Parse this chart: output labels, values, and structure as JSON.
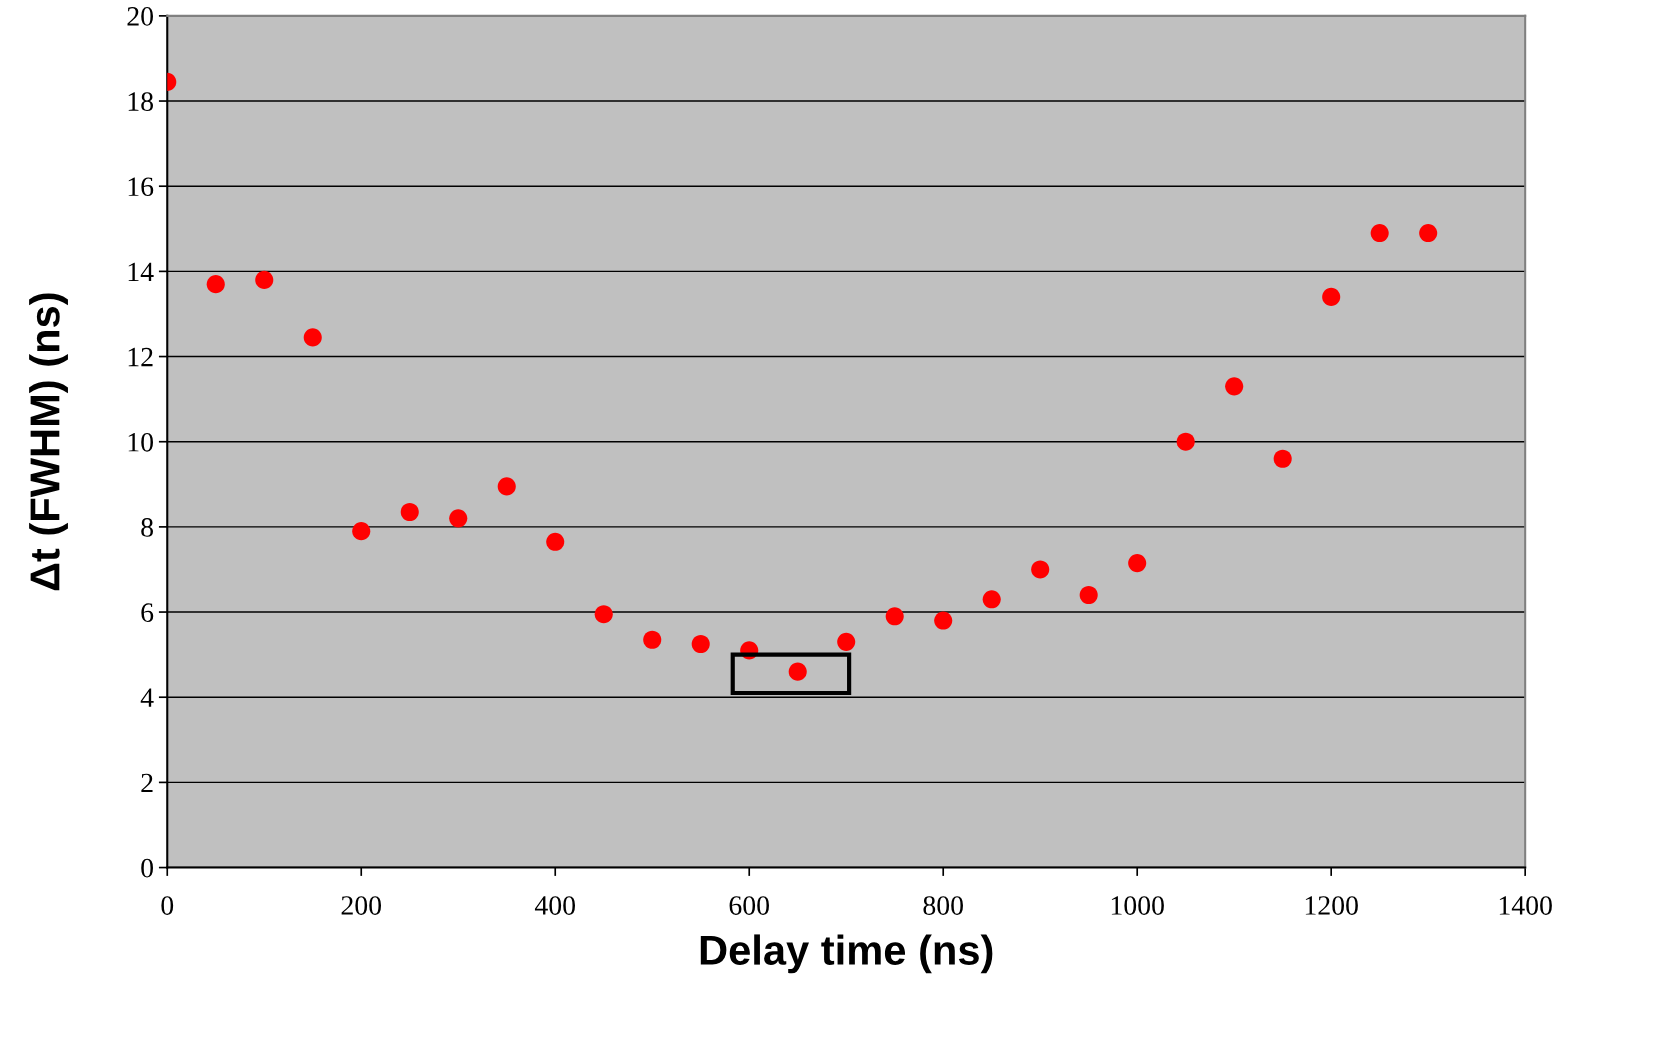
{
  "chart_data": {
    "type": "scatter",
    "xlabel": "Delay time (ns)",
    "ylabel": "Δt (FWHM) (ns)",
    "x": [
      0,
      50,
      100,
      150,
      200,
      250,
      300,
      350,
      400,
      450,
      500,
      550,
      600,
      650,
      700,
      750,
      800,
      850,
      900,
      950,
      1000,
      1050,
      1100,
      1150,
      1200,
      1250,
      1300
    ],
    "series": [
      {
        "color": "#ff0000",
        "values": [
          18.45,
          13.7,
          13.8,
          12.45,
          7.9,
          8.35,
          8.2,
          8.95,
          7.65,
          5.95,
          5.35,
          5.25,
          5.1,
          4.6,
          5.3,
          5.9,
          5.8,
          6.3,
          7.0,
          6.4,
          7.15,
          10.0,
          11.3,
          9.6,
          13.4,
          14.9,
          14.9
        ]
      }
    ],
    "xlim": [
      0,
      1400
    ],
    "xticks": [
      0,
      200,
      400,
      600,
      800,
      1000,
      1200,
      1400
    ],
    "ylim": [
      0,
      20
    ],
    "yticks": [
      0,
      2,
      4,
      6,
      8,
      10,
      12,
      14,
      16,
      18,
      20
    ],
    "grid": "y",
    "marker": "circle",
    "legend": false
  }
}
